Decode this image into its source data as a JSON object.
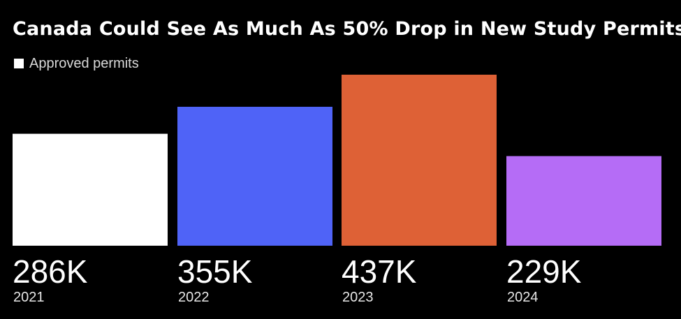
{
  "chart_data": {
    "type": "bar",
    "title": "Canada Could See As Much As 50% Drop in New Study Permits",
    "legend": {
      "entries": [
        "Approved permits"
      ],
      "placement": "top-left"
    },
    "categories": [
      "2021",
      "2022",
      "2023",
      "2024"
    ],
    "values": [
      286,
      355,
      437,
      229
    ],
    "value_labels": [
      "286K",
      "355K",
      "437K",
      "229K"
    ],
    "colors": [
      "#ffffff",
      "#4f63f7",
      "#de6136",
      "#b56cf6"
    ],
    "ylim": [
      0,
      437
    ],
    "grid": false
  }
}
